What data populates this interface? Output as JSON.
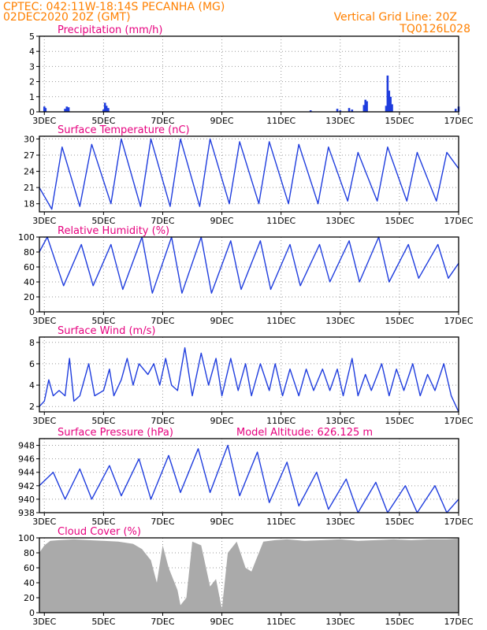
{
  "header": {
    "line1": "CPTEC:   042:11W-18:14S   PECANHA (MG)",
    "line2": "02DEC2020 20Z (GMT)",
    "right1": "Vertical Grid Line: 20Z",
    "right2": "TQ0126L028"
  },
  "colors": {
    "header": "#ff8000",
    "title": "#e6007e",
    "series": "#1f3dde",
    "cloud": "#aaaaaa"
  },
  "x_axis": {
    "tick_labels": [
      "3DEC",
      "5DEC",
      "7DEC",
      "9DEC",
      "11DEC",
      "13DEC",
      "15DEC",
      "17DEC"
    ],
    "tick_days": [
      3,
      5,
      7,
      9,
      11,
      13,
      15,
      17
    ],
    "start_day": 2.833,
    "end_day": 17
  },
  "chart_data": [
    {
      "type": "bar",
      "title": "Precipitation (mm/h)",
      "ylim": [
        0,
        5
      ],
      "yticks": [
        0,
        1,
        2,
        3,
        4,
        5
      ],
      "series": [
        {
          "values": [
            [
              3.0,
              0.35
            ],
            [
              3.04,
              0.25
            ],
            [
              3.7,
              0.2
            ],
            [
              3.76,
              0.35
            ],
            [
              3.82,
              0.3
            ],
            [
              5.0,
              0.15
            ],
            [
              5.05,
              0.6
            ],
            [
              5.1,
              0.4
            ],
            [
              5.16,
              0.25
            ],
            [
              12.0,
              0.1
            ],
            [
              12.9,
              0.2
            ],
            [
              13.0,
              0.1
            ],
            [
              13.3,
              0.25
            ],
            [
              13.4,
              0.15
            ],
            [
              13.8,
              0.45
            ],
            [
              13.85,
              0.8
            ],
            [
              13.9,
              0.7
            ],
            [
              14.55,
              0.4
            ],
            [
              14.6,
              2.4
            ],
            [
              14.65,
              1.4
            ],
            [
              14.7,
              1.0
            ],
            [
              14.75,
              0.5
            ],
            [
              16.9,
              0.2
            ],
            [
              17.0,
              0.35
            ]
          ]
        }
      ],
      "grid": true
    },
    {
      "type": "line",
      "title": "Surface Temperature (nC)",
      "ylim": [
        16.5,
        30.5
      ],
      "yticks": [
        18,
        21,
        24,
        27,
        30
      ],
      "series": [
        {
          "values": [
            [
              2.83,
              21.0
            ],
            [
              3.25,
              17.0
            ],
            [
              3.6,
              28.5
            ],
            [
              4.2,
              17.5
            ],
            [
              4.6,
              29.0
            ],
            [
              5.25,
              18.0
            ],
            [
              5.6,
              30.0
            ],
            [
              6.25,
              17.5
            ],
            [
              6.6,
              30.0
            ],
            [
              7.25,
              17.5
            ],
            [
              7.6,
              30.0
            ],
            [
              8.25,
              17.5
            ],
            [
              8.6,
              30.0
            ],
            [
              9.25,
              18.0
            ],
            [
              9.6,
              29.5
            ],
            [
              10.25,
              18.0
            ],
            [
              10.6,
              29.5
            ],
            [
              11.25,
              18.0
            ],
            [
              11.6,
              29.0
            ],
            [
              12.25,
              18.0
            ],
            [
              12.6,
              28.5
            ],
            [
              13.25,
              18.5
            ],
            [
              13.6,
              27.5
            ],
            [
              14.25,
              18.5
            ],
            [
              14.6,
              28.5
            ],
            [
              15.25,
              18.5
            ],
            [
              15.6,
              27.5
            ],
            [
              16.25,
              18.5
            ],
            [
              16.6,
              27.5
            ],
            [
              17.0,
              24.5
            ]
          ]
        }
      ],
      "grid": true
    },
    {
      "type": "line",
      "title": "Relative Humidity (%)",
      "ylim": [
        0,
        100
      ],
      "yticks": [
        0,
        20,
        40,
        60,
        80,
        100
      ],
      "series": [
        {
          "values": [
            [
              2.83,
              80
            ],
            [
              3.1,
              100
            ],
            [
              3.65,
              35
            ],
            [
              4.25,
              90
            ],
            [
              4.65,
              35
            ],
            [
              5.25,
              90
            ],
            [
              5.65,
              30
            ],
            [
              6.3,
              100
            ],
            [
              6.65,
              25
            ],
            [
              7.3,
              100
            ],
            [
              7.65,
              25
            ],
            [
              8.3,
              100
            ],
            [
              8.65,
              25
            ],
            [
              9.3,
              95
            ],
            [
              9.65,
              30
            ],
            [
              10.3,
              95
            ],
            [
              10.65,
              30
            ],
            [
              11.3,
              90
            ],
            [
              11.65,
              35
            ],
            [
              12.3,
              90
            ],
            [
              12.65,
              40
            ],
            [
              13.3,
              95
            ],
            [
              13.65,
              40
            ],
            [
              14.3,
              100
            ],
            [
              14.65,
              40
            ],
            [
              15.3,
              90
            ],
            [
              15.65,
              45
            ],
            [
              16.3,
              90
            ],
            [
              16.65,
              45
            ],
            [
              17.0,
              65
            ]
          ]
        }
      ],
      "grid": true
    },
    {
      "type": "line",
      "title": "Surface Wind (m/s)",
      "ylim": [
        1.5,
        8.5
      ],
      "yticks": [
        2,
        4,
        6,
        8
      ],
      "series": [
        {
          "values": [
            [
              2.83,
              2.0
            ],
            [
              3.0,
              2.5
            ],
            [
              3.15,
              4.5
            ],
            [
              3.3,
              3.0
            ],
            [
              3.5,
              3.5
            ],
            [
              3.7,
              3.0
            ],
            [
              3.85,
              6.5
            ],
            [
              4.0,
              2.5
            ],
            [
              4.2,
              3.0
            ],
            [
              4.5,
              6.0
            ],
            [
              4.7,
              3.0
            ],
            [
              5.0,
              3.5
            ],
            [
              5.2,
              5.5
            ],
            [
              5.35,
              3.0
            ],
            [
              5.6,
              4.5
            ],
            [
              5.8,
              6.5
            ],
            [
              6.0,
              4.0
            ],
            [
              6.2,
              6.0
            ],
            [
              6.5,
              5.0
            ],
            [
              6.7,
              6.0
            ],
            [
              6.9,
              4.0
            ],
            [
              7.1,
              6.5
            ],
            [
              7.3,
              4.0
            ],
            [
              7.5,
              3.5
            ],
            [
              7.75,
              7.5
            ],
            [
              8.0,
              3.0
            ],
            [
              8.3,
              7.0
            ],
            [
              8.55,
              4.0
            ],
            [
              8.8,
              6.5
            ],
            [
              9.0,
              3.0
            ],
            [
              9.3,
              6.5
            ],
            [
              9.55,
              3.5
            ],
            [
              9.8,
              6.0
            ],
            [
              10.0,
              3.0
            ],
            [
              10.3,
              6.0
            ],
            [
              10.6,
              3.5
            ],
            [
              10.8,
              6.0
            ],
            [
              11.05,
              3.0
            ],
            [
              11.3,
              5.5
            ],
            [
              11.6,
              3.0
            ],
            [
              11.85,
              5.5
            ],
            [
              12.1,
              3.5
            ],
            [
              12.4,
              5.5
            ],
            [
              12.65,
              3.5
            ],
            [
              12.9,
              5.5
            ],
            [
              13.1,
              3.0
            ],
            [
              13.4,
              6.5
            ],
            [
              13.6,
              3.0
            ],
            [
              13.85,
              5.0
            ],
            [
              14.05,
              3.5
            ],
            [
              14.4,
              6.0
            ],
            [
              14.65,
              3.0
            ],
            [
              14.9,
              5.5
            ],
            [
              15.15,
              3.5
            ],
            [
              15.45,
              6.0
            ],
            [
              15.7,
              3.0
            ],
            [
              15.95,
              5.0
            ],
            [
              16.2,
              3.5
            ],
            [
              16.5,
              6.0
            ],
            [
              16.75,
              3.0
            ],
            [
              17.0,
              1.5
            ]
          ]
        }
      ],
      "grid": true
    },
    {
      "type": "line",
      "title": "Surface Pressure (hPa)",
      "annotation": "Model Altitude: 626.125  m",
      "ylim": [
        938,
        949
      ],
      "yticks": [
        938,
        940,
        942,
        944,
        946,
        948
      ],
      "series": [
        {
          "values": [
            [
              2.83,
              942.0
            ],
            [
              3.3,
              944.0
            ],
            [
              3.7,
              940.0
            ],
            [
              4.2,
              944.5
            ],
            [
              4.6,
              940.0
            ],
            [
              5.2,
              945.0
            ],
            [
              5.6,
              940.5
            ],
            [
              6.2,
              946.0
            ],
            [
              6.6,
              940.0
            ],
            [
              7.2,
              946.5
            ],
            [
              7.6,
              941.0
            ],
            [
              8.2,
              947.5
            ],
            [
              8.6,
              941.0
            ],
            [
              9.2,
              948.0
            ],
            [
              9.6,
              940.5
            ],
            [
              10.2,
              947.0
            ],
            [
              10.6,
              939.5
            ],
            [
              11.2,
              945.5
            ],
            [
              11.6,
              939.0
            ],
            [
              12.2,
              944.0
            ],
            [
              12.6,
              938.5
            ],
            [
              13.2,
              943.0
            ],
            [
              13.6,
              938.0
            ],
            [
              14.2,
              942.5
            ],
            [
              14.6,
              938.0
            ],
            [
              15.2,
              942.0
            ],
            [
              15.6,
              938.0
            ],
            [
              16.2,
              942.0
            ],
            [
              16.6,
              938.0
            ],
            [
              17.0,
              940.0
            ]
          ]
        }
      ],
      "grid": true
    },
    {
      "type": "area",
      "title": "Cloud Cover (%)",
      "ylim": [
        0,
        100
      ],
      "yticks": [
        0,
        20,
        40,
        60,
        80,
        100
      ],
      "series": [
        {
          "values": [
            [
              2.83,
              80
            ],
            [
              3.0,
              90
            ],
            [
              3.2,
              96
            ],
            [
              3.5,
              97
            ],
            [
              4.0,
              98
            ],
            [
              4.5,
              97
            ],
            [
              5.0,
              96
            ],
            [
              5.5,
              95
            ],
            [
              6.0,
              92
            ],
            [
              6.3,
              85
            ],
            [
              6.6,
              70
            ],
            [
              6.8,
              40
            ],
            [
              7.0,
              90
            ],
            [
              7.2,
              60
            ],
            [
              7.5,
              30
            ],
            [
              7.6,
              10
            ],
            [
              7.8,
              20
            ],
            [
              8.0,
              95
            ],
            [
              8.3,
              90
            ],
            [
              8.6,
              35
            ],
            [
              8.8,
              45
            ],
            [
              9.0,
              5
            ],
            [
              9.2,
              80
            ],
            [
              9.5,
              95
            ],
            [
              9.8,
              60
            ],
            [
              10.0,
              55
            ],
            [
              10.2,
              75
            ],
            [
              10.4,
              95
            ],
            [
              10.8,
              97
            ],
            [
              11.2,
              98
            ],
            [
              11.8,
              96
            ],
            [
              12.4,
              97
            ],
            [
              13.0,
              98
            ],
            [
              13.6,
              96
            ],
            [
              14.2,
              97
            ],
            [
              14.8,
              98
            ],
            [
              15.4,
              97
            ],
            [
              16.0,
              98
            ],
            [
              16.6,
              98
            ],
            [
              17.0,
              99
            ]
          ]
        }
      ],
      "grid": true
    }
  ]
}
